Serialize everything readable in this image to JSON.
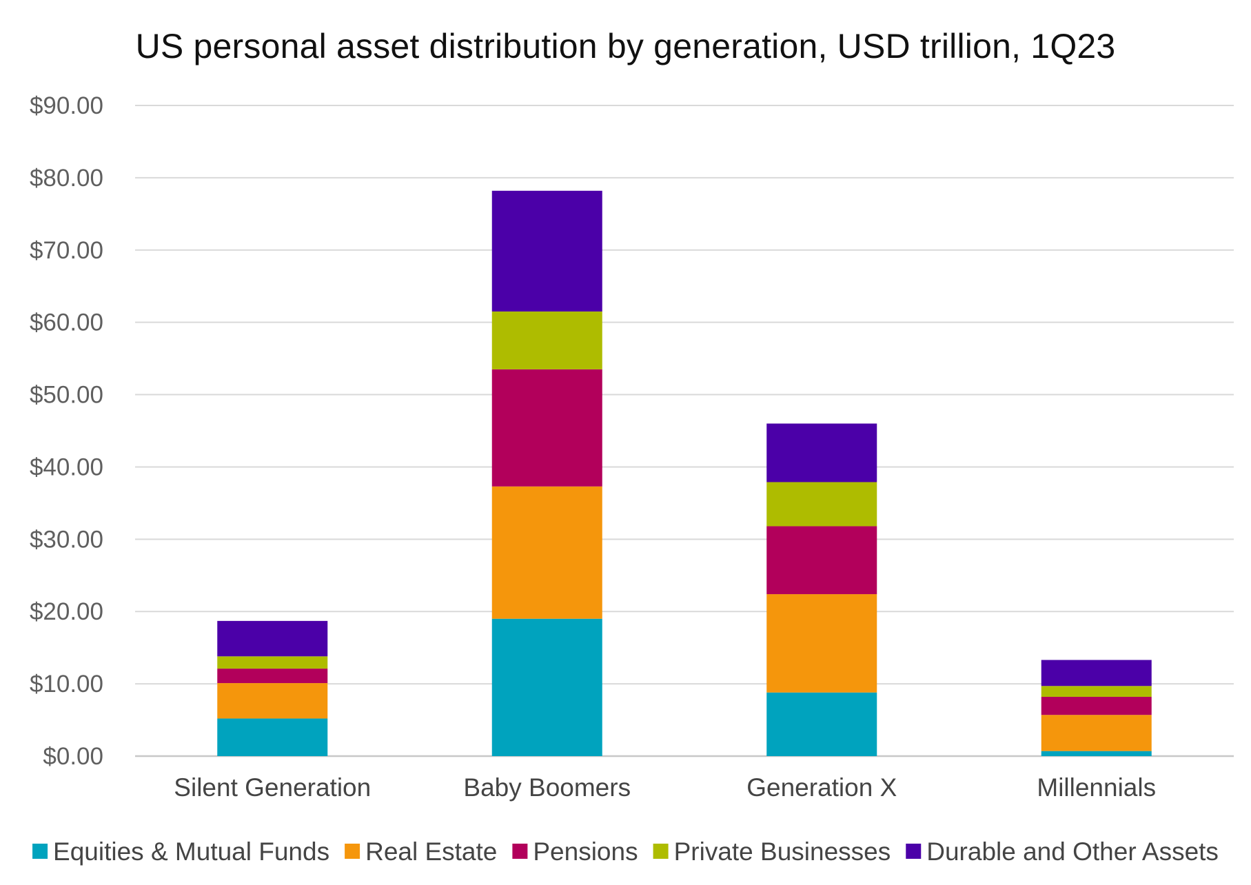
{
  "chart_data": {
    "type": "bar",
    "stacked": true,
    "title": "US personal asset distribution by generation, USD trillion, 1Q23",
    "xlabel": "",
    "ylabel": "",
    "ylim": [
      0,
      90
    ],
    "yticks": [
      0,
      10,
      20,
      30,
      40,
      50,
      60,
      70,
      80,
      90
    ],
    "ytick_labels": [
      "$0.00",
      "$10.00",
      "$20.00",
      "$30.00",
      "$40.00",
      "$50.00",
      "$60.00",
      "$70.00",
      "$80.00",
      "$90.00"
    ],
    "categories": [
      "Silent Generation",
      "Baby Boomers",
      "Generation X",
      "Millennials"
    ],
    "series": [
      {
        "name": "Equities & Mutual Funds",
        "color": "#00a3be",
        "values": [
          5.2,
          19.0,
          8.8,
          0.7
        ]
      },
      {
        "name": "Real Estate",
        "color": "#f5960c",
        "values": [
          4.9,
          18.3,
          13.6,
          5.0
        ]
      },
      {
        "name": "Pensions",
        "color": "#b2005b",
        "values": [
          2.0,
          16.2,
          9.4,
          2.5
        ]
      },
      {
        "name": "Private Businesses",
        "color": "#aebc00",
        "values": [
          1.7,
          8.0,
          6.1,
          1.5
        ]
      },
      {
        "name": "Durable and Other Assets",
        "color": "#4b00a8",
        "values": [
          4.9,
          16.7,
          8.1,
          3.6
        ]
      }
    ],
    "grid": true,
    "legend_position": "bottom"
  }
}
